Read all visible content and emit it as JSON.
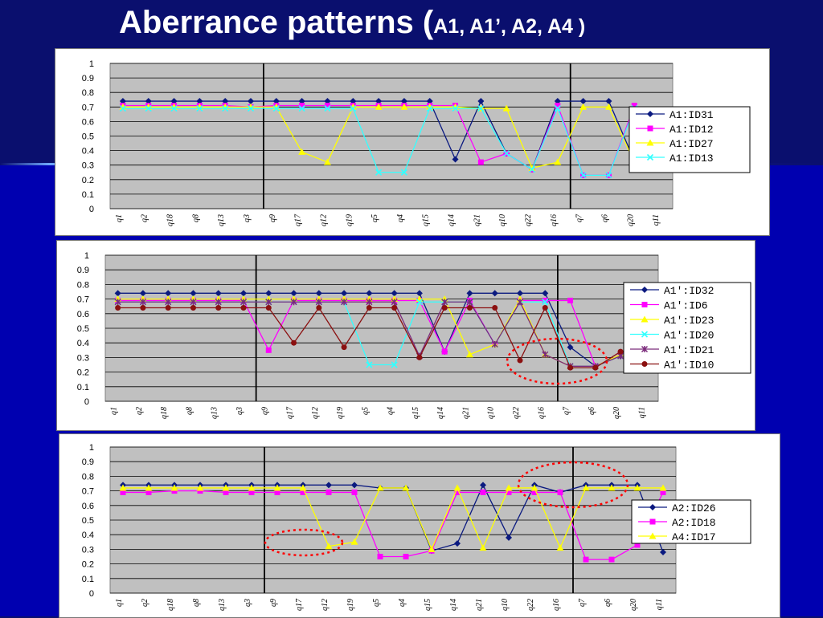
{
  "slide": {
    "title_main": "Aberrance patterns (",
    "title_sub": "A1, A1’, A2, A4 )"
  },
  "colors": {
    "plot_background": "#c0c0c0",
    "navy": "#0b1a80",
    "magenta": "#ff00ff",
    "yellow": "#ffff00",
    "cyan": "#33ffff",
    "purple": "#7b2a7b",
    "dark_red": "#8b1010",
    "annotation": "#ff0000"
  },
  "chart_data": [
    {
      "type": "line",
      "categories": [
        "q1",
        "q2",
        "q18",
        "q8",
        "q13",
        "q3",
        "q9",
        "q17",
        "q12",
        "q19",
        "q5",
        "q4",
        "q15",
        "q14",
        "q21",
        "q10",
        "q22",
        "q16",
        "q7",
        "q6",
        "q20",
        "q11"
      ],
      "ylim": [
        0,
        1
      ],
      "yticks": [
        "0",
        "0.1",
        "0.2",
        "0.3",
        "0.4",
        "0.5",
        "0.6",
        "0.7",
        "0.8",
        "0.9",
        "1"
      ],
      "grid": true,
      "legend_position": "right",
      "separators_after_category": [
        "q3",
        "q16"
      ],
      "series": [
        {
          "name": "A1:ID31",
          "color": "#0b1a80",
          "marker": "diamond",
          "values": [
            0.74,
            0.74,
            0.74,
            0.74,
            0.74,
            0.74,
            0.74,
            0.74,
            0.74,
            0.74,
            0.74,
            0.74,
            0.74,
            0.34,
            0.74,
            0.38,
            0.27,
            0.74,
            0.74,
            0.74,
            0.33,
            0.29
          ]
        },
        {
          "name": "A1:ID12",
          "color": "#ff00ff",
          "marker": "square",
          "values": [
            0.71,
            0.71,
            0.71,
            0.71,
            0.71,
            0.7,
            0.71,
            0.71,
            0.71,
            0.71,
            0.71,
            0.71,
            0.71,
            0.71,
            0.32,
            0.38,
            0.27,
            0.71,
            0.23,
            0.23,
            0.71,
            0.29
          ]
        },
        {
          "name": "A1:ID27",
          "color": "#ffff00",
          "marker": "triangle",
          "values": [
            0.7,
            0.7,
            0.7,
            0.7,
            0.7,
            0.7,
            0.7,
            0.39,
            0.32,
            0.7,
            0.7,
            0.7,
            0.7,
            0.7,
            0.69,
            0.69,
            0.28,
            0.32,
            0.7,
            0.7,
            0.32,
            0.28
          ]
        },
        {
          "name": "A1:ID13",
          "color": "#33ffff",
          "marker": "x",
          "values": [
            0.69,
            0.69,
            0.69,
            0.69,
            0.69,
            0.69,
            0.69,
            0.69,
            0.69,
            0.69,
            0.25,
            0.25,
            0.69,
            0.69,
            0.69,
            0.38,
            0.27,
            0.69,
            0.23,
            0.23,
            0.69,
            0.29
          ]
        }
      ]
    },
    {
      "type": "line",
      "categories": [
        "q1",
        "q2",
        "q18",
        "q8",
        "q13",
        "q3",
        "q9",
        "q17",
        "q12",
        "q19",
        "q5",
        "q4",
        "q15",
        "q14",
        "q21",
        "q10",
        "q22",
        "q16",
        "q7",
        "q6",
        "q20",
        "q11"
      ],
      "ylim": [
        0,
        1
      ],
      "yticks": [
        "0",
        "0.1",
        "0.2",
        "0.3",
        "0.4",
        "0.5",
        "0.6",
        "0.7",
        "0.8",
        "0.9",
        "1"
      ],
      "grid": true,
      "legend_position": "right",
      "separators_after_category": [
        "q3",
        "q16"
      ],
      "series": [
        {
          "name": "A1':ID32",
          "color": "#0b1a80",
          "marker": "diamond",
          "values": [
            0.74,
            0.74,
            0.74,
            0.74,
            0.74,
            0.74,
            0.74,
            0.74,
            0.74,
            0.74,
            0.74,
            0.74,
            0.74,
            0.34,
            0.74,
            0.74,
            0.74,
            0.74,
            0.37,
            0.24,
            0.31,
            0.28
          ]
        },
        {
          "name": "A1':ID6",
          "color": "#ff00ff",
          "marker": "square",
          "values": [
            0.69,
            0.69,
            0.69,
            0.69,
            0.69,
            0.69,
            0.35,
            0.69,
            0.69,
            0.69,
            0.69,
            0.69,
            0.69,
            0.34,
            0.69,
            0.39,
            0.69,
            0.69,
            0.69,
            0.24,
            0.32,
            0.3
          ]
        },
        {
          "name": "A1':ID23",
          "color": "#ffff00",
          "marker": "triangle",
          "values": [
            0.7,
            0.7,
            0.7,
            0.7,
            0.7,
            0.7,
            0.7,
            0.7,
            0.7,
            0.7,
            0.7,
            0.7,
            0.7,
            0.7,
            0.32,
            0.39,
            0.7,
            0.32,
            0.24,
            0.24,
            0.32,
            0.29
          ]
        },
        {
          "name": "A1':ID20",
          "color": "#33ffff",
          "marker": "x",
          "values": [
            0.68,
            0.68,
            0.68,
            0.68,
            0.68,
            0.68,
            0.68,
            0.68,
            0.68,
            0.68,
            0.25,
            0.25,
            0.68,
            0.68,
            0.68,
            0.39,
            0.68,
            0.68,
            0.24,
            0.24,
            0.31,
            0.29
          ]
        },
        {
          "name": "A1':ID21",
          "color": "#7b2a7b",
          "marker": "asterisk",
          "values": [
            0.68,
            0.68,
            0.68,
            0.68,
            0.68,
            0.68,
            0.68,
            0.68,
            0.68,
            0.68,
            0.68,
            0.68,
            0.31,
            0.68,
            0.68,
            0.39,
            0.68,
            0.32,
            0.24,
            0.24,
            0.31,
            0.29
          ]
        },
        {
          "name": "A1':ID10",
          "color": "#8b1010",
          "marker": "circle",
          "values": [
            0.64,
            0.64,
            0.64,
            0.64,
            0.64,
            0.64,
            0.64,
            0.4,
            0.64,
            0.37,
            0.64,
            0.64,
            0.3,
            0.64,
            0.64,
            0.64,
            0.28,
            0.64,
            0.23,
            0.23,
            0.34,
            0.3
          ]
        }
      ]
    },
    {
      "type": "line",
      "categories": [
        "q1",
        "q2",
        "q18",
        "q8",
        "q13",
        "q3",
        "q9",
        "q17",
        "q12",
        "q19",
        "q5",
        "q4",
        "q15",
        "q14",
        "q21",
        "q10",
        "q22",
        "q16",
        "q7",
        "q6",
        "q20",
        "q11"
      ],
      "ylim": [
        0,
        1
      ],
      "yticks": [
        "0",
        "0.1",
        "0.2",
        "0.3",
        "0.4",
        "0.5",
        "0.6",
        "0.7",
        "0.8",
        "0.9",
        "1"
      ],
      "grid": true,
      "legend_position": "right",
      "separators_after_category": [
        "q3",
        "q16"
      ],
      "series": [
        {
          "name": "A2:ID26",
          "color": "#0b1a80",
          "marker": "diamond",
          "values": [
            0.74,
            0.74,
            0.74,
            0.74,
            0.74,
            0.74,
            0.74,
            0.74,
            0.74,
            0.74,
            0.72,
            0.72,
            0.29,
            0.34,
            0.74,
            0.38,
            0.74,
            0.69,
            0.74,
            0.74,
            0.74,
            0.28
          ]
        },
        {
          "name": "A2:ID18",
          "color": "#ff00ff",
          "marker": "square",
          "values": [
            0.69,
            0.69,
            0.7,
            0.7,
            0.69,
            0.69,
            0.69,
            0.69,
            0.69,
            0.69,
            0.25,
            0.25,
            0.29,
            0.69,
            0.69,
            0.69,
            0.69,
            0.69,
            0.23,
            0.23,
            0.33,
            0.69
          ]
        },
        {
          "name": "A4:ID17",
          "color": "#ffff00",
          "marker": "triangle",
          "values": [
            0.72,
            0.72,
            0.72,
            0.72,
            0.72,
            0.72,
            0.72,
            0.72,
            0.32,
            0.35,
            0.72,
            0.72,
            0.3,
            0.72,
            0.31,
            0.72,
            0.72,
            0.31,
            0.72,
            0.72,
            0.72,
            0.72
          ]
        }
      ]
    }
  ]
}
